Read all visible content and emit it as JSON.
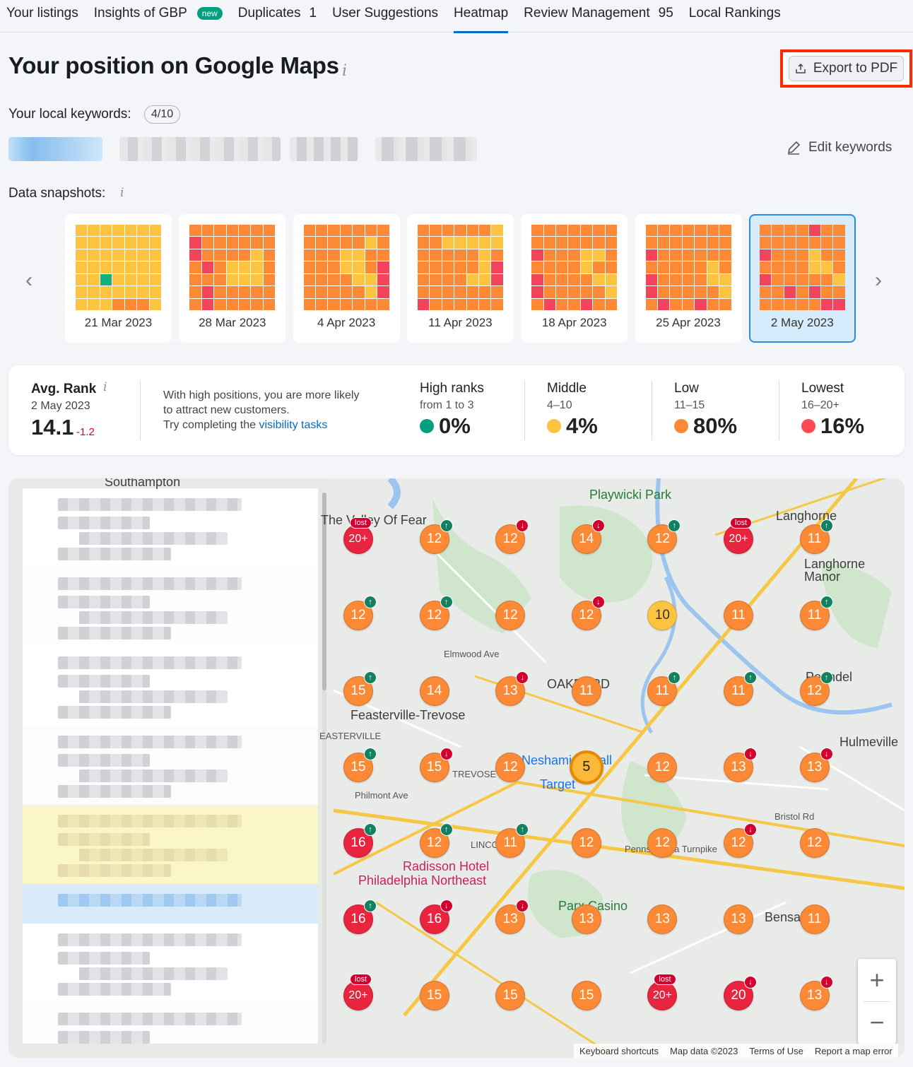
{
  "tabs": [
    {
      "label": "Your listings"
    },
    {
      "label": "Insights of GBP",
      "badge": "new"
    },
    {
      "label": "Duplicates",
      "count": "1"
    },
    {
      "label": "User Suggestions"
    },
    {
      "label": "Heatmap",
      "active": true
    },
    {
      "label": "Review Management",
      "count": "95"
    },
    {
      "label": "Local Rankings"
    }
  ],
  "header": {
    "title": "Your position on Google Maps",
    "info_icon": "info-icon",
    "export_label": "Export to PDF"
  },
  "keywords": {
    "label": "Your local keywords:",
    "count": "4/10",
    "edit_label": "Edit keywords"
  },
  "snapshots": {
    "label": "Data snapshots:",
    "colors": {
      "g": "#12b27f",
      "y": "#fdc441",
      "o": "#fb8935",
      "r": "#f2445b"
    },
    "items": [
      {
        "date": "21 Mar 2023",
        "grid": "yyyyyyyyyyyyyyyyyyyyyyyyyyyyyygyyyyyyyyyyyyyyoooyyyo"
      },
      {
        "date": "28 Mar 2023",
        "grid": "oooooooroooooorooooyooroyyyooooyyyoorooooooroooooo"
      },
      {
        "date": "4 Apr 2023",
        "grid": "ooooooooooooyooooyyoooooyyorooooyyroooooyroooooooo"
      },
      {
        "date": "11 Apr 2023",
        "grid": "ooooooyooyyyyyoooooyooooooyrooooyyroooooooroooooooo"
      },
      {
        "date": "18 Apr 2023",
        "grid": "ooooooooooooooroooyyoooooyoorooooyyroooooyorooroooo"
      },
      {
        "date": "25 Apr 2023",
        "grid": "ooooooooooooooroooooooooooyorooooyyroooooyorooroooo"
      },
      {
        "date": "2 May 2023",
        "grid": "ooooroooooooooroooyooooooyyoroooooyoororooooooorroo",
        "selected": true
      }
    ]
  },
  "stats": {
    "avg_title": "Avg. Rank",
    "avg_date": "2 May 2023",
    "avg_value": "14.1",
    "avg_change": "-1.2",
    "hint_line1": "With high positions, you are more likely",
    "hint_line2": "to attract new customers.",
    "hint_line3": "Try completing the ",
    "hint_link": "visibility tasks",
    "buckets": [
      {
        "title": "High ranks",
        "sub": "from 1 to 3",
        "value": "0%",
        "color": "#009f81"
      },
      {
        "title": "Middle",
        "sub": "4–10",
        "value": "4%",
        "color": "#fdc441"
      },
      {
        "title": "Low",
        "sub": "11–15",
        "value": "80%",
        "color": "#fb8935"
      },
      {
        "title": "Lowest",
        "sub": "16–20+",
        "value": "16%",
        "color": "#ff4953"
      }
    ]
  },
  "map": {
    "labels": {
      "southampton": "Southampton",
      "playwicki": "Playwicki Park",
      "langhorne": "Langhorne",
      "langhorne_manor": "Langhorne\nManor",
      "valley": "The Valley Of Fear",
      "feasterville": "Feasterville-Trevose",
      "easterville": "EASTERVILLE",
      "oakford": "OAKFORD",
      "trevose": "TREVOSE",
      "neshaminy": "Neshaminy Mall",
      "target": "Target",
      "hulmeville": "Hulmeville",
      "penndel": "Penndel",
      "lincoln": "LINCOLN",
      "radisson1": "Radisson Hotel",
      "radisson2": "Philadelphia Northeast",
      "parx": "Parx Casino",
      "bensalem": "Bensalem",
      "philmont": "Philmont Ave",
      "elmwood": "Elmwood Ave",
      "bristol": "Bristol Rd",
      "turnpike": "Pennsylvania Turnpike"
    },
    "pins": [
      [
        "20+",
        "red",
        "lost"
      ],
      [
        "12",
        "orange",
        "up"
      ],
      [
        "12",
        "orange",
        "down"
      ],
      [
        "14",
        "orange",
        "down"
      ],
      [
        "12",
        "orange",
        "up"
      ],
      [
        "20+",
        "red",
        "lost"
      ],
      [
        "11",
        "orange",
        "up"
      ],
      [
        "12",
        "orange",
        "up"
      ],
      [
        "12",
        "orange",
        "up"
      ],
      [
        "12",
        "orange",
        ""
      ],
      [
        "12",
        "orange",
        "down"
      ],
      [
        "10",
        "yellow",
        ""
      ],
      [
        "11",
        "orange",
        ""
      ],
      [
        "11",
        "orange",
        "up"
      ],
      [
        "15",
        "orange",
        "up"
      ],
      [
        "14",
        "orange",
        ""
      ],
      [
        "13",
        "orange",
        "down"
      ],
      [
        "11",
        "orange",
        ""
      ],
      [
        "11",
        "orange",
        "up"
      ],
      [
        "11",
        "orange",
        "up"
      ],
      [
        "12",
        "orange",
        "up"
      ],
      [
        "15",
        "orange",
        "up"
      ],
      [
        "15",
        "orange",
        "down"
      ],
      [
        "12",
        "orange",
        ""
      ],
      [
        "5",
        "big",
        ""
      ],
      [
        "12",
        "orange",
        ""
      ],
      [
        "13",
        "orange",
        "down"
      ],
      [
        "13",
        "orange",
        "down"
      ],
      [
        "16",
        "red",
        "up"
      ],
      [
        "12",
        "orange",
        "up"
      ],
      [
        "11",
        "orange",
        "up"
      ],
      [
        "12",
        "orange",
        ""
      ],
      [
        "12",
        "orange",
        ""
      ],
      [
        "12",
        "orange",
        "down"
      ],
      [
        "12",
        "orange",
        ""
      ],
      [
        "16",
        "red",
        "up"
      ],
      [
        "16",
        "red",
        "down"
      ],
      [
        "13",
        "orange",
        "down"
      ],
      [
        "13",
        "orange",
        ""
      ],
      [
        "13",
        "orange",
        ""
      ],
      [
        "13",
        "orange",
        ""
      ],
      [
        "11",
        "orange",
        ""
      ],
      [
        "20+",
        "red",
        "lost"
      ],
      [
        "15",
        "orange",
        ""
      ],
      [
        "15",
        "orange",
        ""
      ],
      [
        "15",
        "orange",
        ""
      ],
      [
        "20+",
        "red",
        "lost"
      ],
      [
        "20",
        "red",
        "down"
      ],
      [
        "13",
        "orange",
        "down"
      ]
    ],
    "zoom_in": "+",
    "zoom_out": "−",
    "attribution": [
      "Keyboard shortcuts",
      "Map data ©2023",
      "Terms of Use",
      "Report a map error"
    ]
  }
}
